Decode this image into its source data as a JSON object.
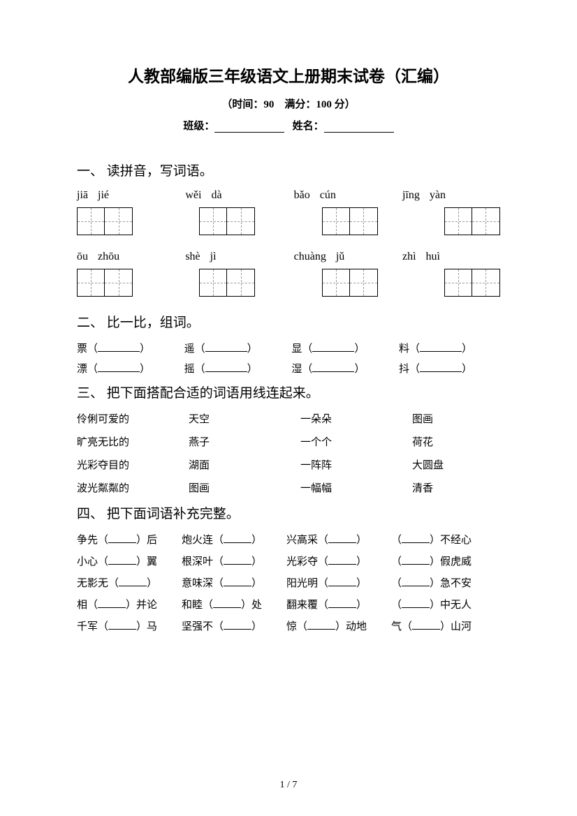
{
  "title": "人教部编版三年级语文上册期末试卷（汇编）",
  "subtitle": "（时间：90　满分：100 分）",
  "info": {
    "class_label": "班级：",
    "name_label": "姓名："
  },
  "q1": {
    "heading": "一、 读拼音，写词语。",
    "row1": [
      {
        "p1": "jiā",
        "p2": "jié"
      },
      {
        "p1": "wěi",
        "p2": "dà"
      },
      {
        "p1": "bǎo",
        "p2": "cún"
      },
      {
        "p1": "jīng",
        "p2": "yàn"
      }
    ],
    "row2": [
      {
        "p1": "ōu",
        "p2": "zhōu"
      },
      {
        "p1": "shè",
        "p2": "jì"
      },
      {
        "p1": "chuàng",
        "p2": "jǔ"
      },
      {
        "p1": "zhì",
        "p2": "huì"
      }
    ]
  },
  "q2": {
    "heading": "二、 比一比，组词。",
    "rows": [
      [
        "票",
        "遥",
        "显",
        "料"
      ],
      [
        "漂",
        "摇",
        "湿",
        "抖"
      ]
    ]
  },
  "q3": {
    "heading": "三、 把下面搭配合适的词语用线连起来。",
    "rows": [
      [
        "伶俐可爱的",
        "天空",
        "一朵朵",
        "图画"
      ],
      [
        "旷亮无比的",
        "燕子",
        "一个个",
        "荷花"
      ],
      [
        "光彩夺目的",
        "湖面",
        "一阵阵",
        "大圆盘"
      ],
      [
        "波光粼粼的",
        "图画",
        "一幅幅",
        "清香"
      ]
    ]
  },
  "q4": {
    "heading": "四、 把下面词语补充完整。",
    "rows": [
      [
        {
          "pre": "争先（",
          "suf": "）后"
        },
        {
          "pre": "炮火连（",
          "suf": "）"
        },
        {
          "pre": "兴高采（",
          "suf": "）"
        },
        {
          "pre": "（",
          "suf": "）不经心"
        }
      ],
      [
        {
          "pre": "小心（",
          "suf": "）翼"
        },
        {
          "pre": "根深叶（",
          "suf": "）"
        },
        {
          "pre": "光彩夺（",
          "suf": "）"
        },
        {
          "pre": "（",
          "suf": "）假虎威"
        }
      ],
      [
        {
          "pre": "无影无（",
          "suf": "）"
        },
        {
          "pre": "意味深（",
          "suf": "）"
        },
        {
          "pre": "阳光明（",
          "suf": "）"
        },
        {
          "pre": "（",
          "suf": "）急不安"
        }
      ],
      [
        {
          "pre": "相（",
          "suf": "）并论"
        },
        {
          "pre": "和睦（",
          "suf": "）处"
        },
        {
          "pre": "翻来覆（",
          "suf": "）"
        },
        {
          "pre": "（",
          "suf": "）中无人"
        }
      ],
      [
        {
          "pre": "千军（",
          "suf": "）马"
        },
        {
          "pre": "坚强不（",
          "suf": "）"
        },
        {
          "pre": "惊（",
          "suf": "）动地"
        },
        {
          "pre": "气（",
          "suf": "）山河"
        }
      ]
    ]
  },
  "page_num": "1 / 7"
}
